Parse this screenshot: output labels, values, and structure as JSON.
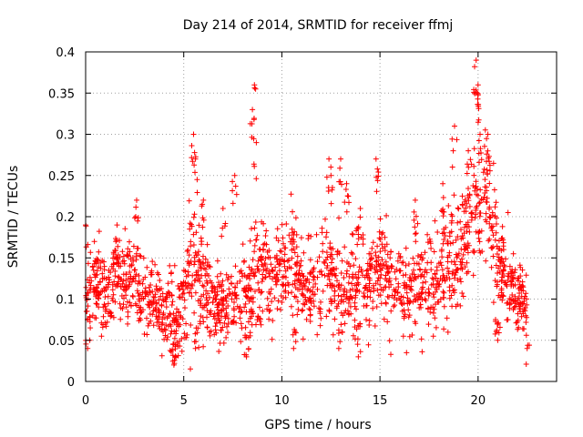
{
  "chart_data": {
    "type": "scatter",
    "title": "Day 214 of 2014, SRMTID for receiver ffmj",
    "xlabel": "GPS time / hours",
    "ylabel": "SRMTID / TECUs",
    "xlim": [
      0,
      24
    ],
    "ylim": [
      0,
      0.4
    ],
    "xticks": [
      0,
      5,
      10,
      15,
      20
    ],
    "xtick_labels": [
      "0",
      "5",
      "10",
      "15",
      "20"
    ],
    "yticks": [
      0,
      0.05,
      0.1,
      0.15,
      0.2,
      0.25,
      0.3,
      0.35,
      0.4
    ],
    "ytick_labels": [
      "0",
      "0.05",
      "0.1",
      "0.15",
      "0.2",
      "0.25",
      "0.3",
      "0.35",
      "0.4"
    ],
    "grid": true,
    "marker": "plus",
    "color": "#ff0000",
    "series": [
      {
        "name": "SRMTID",
        "envelope": [
          [
            0.0,
            0.11,
            0.045
          ],
          [
            0.3,
            0.12,
            0.035
          ],
          [
            0.6,
            0.12,
            0.03
          ],
          [
            1.0,
            0.1,
            0.03
          ],
          [
            1.5,
            0.13,
            0.035
          ],
          [
            2.0,
            0.12,
            0.035
          ],
          [
            2.5,
            0.13,
            0.035
          ],
          [
            3.0,
            0.1,
            0.03
          ],
          [
            3.5,
            0.09,
            0.03
          ],
          [
            4.0,
            0.09,
            0.03
          ],
          [
            4.5,
            0.075,
            0.035
          ],
          [
            5.0,
            0.1,
            0.035
          ],
          [
            5.5,
            0.14,
            0.05
          ],
          [
            6.0,
            0.11,
            0.04
          ],
          [
            6.5,
            0.09,
            0.03
          ],
          [
            7.0,
            0.09,
            0.03
          ],
          [
            7.5,
            0.1,
            0.035
          ],
          [
            8.0,
            0.1,
            0.035
          ],
          [
            8.5,
            0.13,
            0.045
          ],
          [
            9.0,
            0.13,
            0.04
          ],
          [
            9.5,
            0.13,
            0.035
          ],
          [
            10.0,
            0.14,
            0.035
          ],
          [
            10.5,
            0.15,
            0.04
          ],
          [
            11.0,
            0.12,
            0.035
          ],
          [
            11.5,
            0.11,
            0.035
          ],
          [
            12.0,
            0.12,
            0.04
          ],
          [
            12.5,
            0.13,
            0.04
          ],
          [
            13.0,
            0.11,
            0.035
          ],
          [
            13.5,
            0.1,
            0.035
          ],
          [
            14.0,
            0.12,
            0.04
          ],
          [
            14.5,
            0.13,
            0.04
          ],
          [
            15.0,
            0.14,
            0.035
          ],
          [
            15.5,
            0.12,
            0.035
          ],
          [
            16.0,
            0.12,
            0.035
          ],
          [
            16.5,
            0.11,
            0.035
          ],
          [
            17.0,
            0.12,
            0.035
          ],
          [
            17.5,
            0.12,
            0.04
          ],
          [
            18.0,
            0.12,
            0.04
          ],
          [
            18.5,
            0.14,
            0.045
          ],
          [
            19.0,
            0.15,
            0.05
          ],
          [
            19.5,
            0.18,
            0.05
          ],
          [
            20.0,
            0.22,
            0.06
          ],
          [
            20.5,
            0.21,
            0.05
          ],
          [
            21.0,
            0.15,
            0.045
          ],
          [
            21.5,
            0.12,
            0.035
          ],
          [
            22.0,
            0.1,
            0.03
          ],
          [
            22.5,
            0.09,
            0.025
          ]
        ],
        "spikes": [
          [
            0.0,
            0.19
          ],
          [
            1.6,
            0.19
          ],
          [
            2.6,
            0.22
          ],
          [
            5.5,
            0.3
          ],
          [
            5.6,
            0.27
          ],
          [
            6.0,
            0.22
          ],
          [
            7.0,
            0.21
          ],
          [
            7.6,
            0.25
          ],
          [
            8.5,
            0.33
          ],
          [
            8.6,
            0.36
          ],
          [
            8.7,
            0.29
          ],
          [
            12.4,
            0.27
          ],
          [
            12.5,
            0.25
          ],
          [
            13.0,
            0.27
          ],
          [
            13.3,
            0.24
          ],
          [
            14.0,
            0.21
          ],
          [
            14.8,
            0.27
          ],
          [
            16.8,
            0.22
          ],
          [
            18.2,
            0.24
          ],
          [
            18.8,
            0.31
          ],
          [
            19.5,
            0.28
          ],
          [
            19.9,
            0.39
          ],
          [
            20.0,
            0.36
          ],
          [
            20.1,
            0.3
          ],
          [
            20.5,
            0.3
          ],
          [
            4.5,
            0.02
          ],
          [
            4.6,
            0.03
          ],
          [
            8.2,
            0.03
          ],
          [
            13.9,
            0.03
          ],
          [
            22.5,
            0.04
          ],
          [
            21.0,
            0.05
          ],
          [
            0.1,
            0.04
          ],
          [
            5.6,
            0.04
          ],
          [
            10.6,
            0.04
          ],
          [
            12.9,
            0.04
          ]
        ]
      }
    ]
  }
}
